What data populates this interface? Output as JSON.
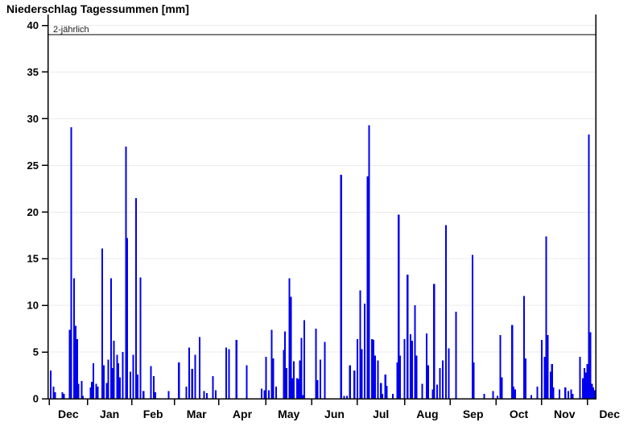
{
  "window": {
    "title": "Niederschlag Tagessummen [mm]"
  },
  "colors": {
    "bar": "#0000EE",
    "grid": "#ebebeb",
    "axis": "#000000",
    "threshold_line": "#000000",
    "background": "#FFFFFF",
    "text": "#000000"
  },
  "chart_data": {
    "type": "bar",
    "title": "Niederschlag Tagessummen [mm]",
    "xlabel": "",
    "ylabel": "",
    "unit": "mm",
    "ylim": [
      0,
      40
    ],
    "y_ticks": [
      0,
      5,
      10,
      15,
      20,
      25,
      30,
      35,
      40
    ],
    "grid": "horizontal light-gray lines every 5 mm",
    "legend_position": "none",
    "threshold": {
      "label": "2-jährlich",
      "value": 39.0
    },
    "month_ticks": [
      {
        "label": "Dec",
        "tick_day": 0,
        "center_day": 13
      },
      {
        "label": "Jan",
        "tick_day": 26,
        "center_day": 41
      },
      {
        "label": "Feb",
        "tick_day": 56,
        "center_day": 70.5
      },
      {
        "label": "Mar",
        "tick_day": 85,
        "center_day": 100
      },
      {
        "label": "Apr",
        "tick_day": 115,
        "center_day": 131
      },
      {
        "label": "May",
        "tick_day": 147,
        "center_day": 162.5
      },
      {
        "label": "Jun",
        "tick_day": 178,
        "center_day": 193.5
      },
      {
        "label": "Jul",
        "tick_day": 209,
        "center_day": 225
      },
      {
        "label": "Aug",
        "tick_day": 241,
        "center_day": 256.5
      },
      {
        "label": "Sep",
        "tick_day": 272,
        "center_day": 287.5
      },
      {
        "label": "Oct",
        "tick_day": 303,
        "center_day": 318.5
      },
      {
        "label": "Nov",
        "tick_day": 334,
        "center_day": 349.5
      },
      {
        "label": "Dec",
        "tick_day": 365,
        "center_day": 380
      }
    ],
    "total_days": 371,
    "bars": [
      [
        1,
        3.0
      ],
      [
        3,
        1.3
      ],
      [
        4,
        0.7
      ],
      [
        9,
        0.7
      ],
      [
        10,
        0.5
      ],
      [
        14,
        7.4
      ],
      [
        15,
        29.1
      ],
      [
        17,
        12.9
      ],
      [
        18,
        7.8
      ],
      [
        19,
        6.4
      ],
      [
        20,
        1.6
      ],
      [
        22,
        1.9
      ],
      [
        23,
        0.3
      ],
      [
        28,
        1.2
      ],
      [
        29,
        1.8
      ],
      [
        30,
        3.8
      ],
      [
        32,
        1.6
      ],
      [
        33,
        1.3
      ],
      [
        36,
        16.1
      ],
      [
        37,
        3.6
      ],
      [
        39,
        1.7
      ],
      [
        40,
        4.2
      ],
      [
        42,
        12.9
      ],
      [
        43,
        3.3
      ],
      [
        44,
        6.2
      ],
      [
        46,
        4.7
      ],
      [
        47,
        3.8
      ],
      [
        48,
        2.3
      ],
      [
        50,
        5.0
      ],
      [
        52,
        27.0
      ],
      [
        53,
        17.2
      ],
      [
        55,
        2.9
      ],
      [
        57,
        4.7
      ],
      [
        59,
        21.5
      ],
      [
        60,
        2.6
      ],
      [
        62,
        13.0
      ],
      [
        64,
        0.8
      ],
      [
        69,
        3.5
      ],
      [
        71,
        2.4
      ],
      [
        72,
        0.7
      ],
      [
        81,
        0.8
      ],
      [
        88,
        3.9
      ],
      [
        93,
        1.3
      ],
      [
        95,
        5.5
      ],
      [
        97,
        3.2
      ],
      [
        99,
        4.7
      ],
      [
        102,
        6.6
      ],
      [
        105,
        0.8
      ],
      [
        107,
        0.6
      ],
      [
        111,
        2.4
      ],
      [
        113,
        0.9
      ],
      [
        120,
        5.5
      ],
      [
        122,
        5.3
      ],
      [
        127,
        6.3
      ],
      [
        134,
        3.6
      ],
      [
        144,
        1.1
      ],
      [
        146,
        0.9
      ],
      [
        147,
        4.5
      ],
      [
        149,
        0.9
      ],
      [
        151,
        7.4
      ],
      [
        152,
        4.3
      ],
      [
        154,
        1.3
      ],
      [
        159,
        5.2
      ],
      [
        160,
        7.2
      ],
      [
        161,
        3.3
      ],
      [
        163,
        12.9
      ],
      [
        164,
        10.9
      ],
      [
        165,
        2.2
      ],
      [
        166,
        4.0
      ],
      [
        168,
        2.2
      ],
      [
        169,
        2.1
      ],
      [
        170,
        4.1
      ],
      [
        171,
        6.5
      ],
      [
        172,
        0.4
      ],
      [
        173,
        8.4
      ],
      [
        181,
        7.5
      ],
      [
        182,
        2.0
      ],
      [
        184,
        4.2
      ],
      [
        187,
        6.1
      ],
      [
        198,
        24.0
      ],
      [
        200,
        0.3
      ],
      [
        202,
        0.3
      ],
      [
        204,
        3.6
      ],
      [
        207,
        3.0
      ],
      [
        209,
        6.4
      ],
      [
        211,
        11.6
      ],
      [
        212,
        5.3
      ],
      [
        214,
        10.2
      ],
      [
        216,
        23.8
      ],
      [
        217,
        29.3
      ],
      [
        219,
        6.4
      ],
      [
        220,
        6.3
      ],
      [
        221,
        4.6
      ],
      [
        223,
        4.1
      ],
      [
        225,
        1.7
      ],
      [
        226,
        0.5
      ],
      [
        228,
        2.6
      ],
      [
        229,
        1.4
      ],
      [
        233,
        0.5
      ],
      [
        236,
        3.9
      ],
      [
        237,
        19.7
      ],
      [
        238,
        4.6
      ],
      [
        241,
        6.4
      ],
      [
        243,
        13.3
      ],
      [
        245,
        6.9
      ],
      [
        246,
        6.2
      ],
      [
        248,
        10.0
      ],
      [
        249,
        4.6
      ],
      [
        253,
        1.6
      ],
      [
        256,
        7.0
      ],
      [
        257,
        3.6
      ],
      [
        260,
        1.0
      ],
      [
        261,
        12.3
      ],
      [
        263,
        1.5
      ],
      [
        265,
        3.3
      ],
      [
        267,
        4.1
      ],
      [
        269,
        18.6
      ],
      [
        271,
        5.4
      ],
      [
        276,
        9.3
      ],
      [
        287,
        15.4
      ],
      [
        288,
        3.9
      ],
      [
        295,
        0.5
      ],
      [
        301,
        0.8
      ],
      [
        304,
        0.3
      ],
      [
        306,
        6.8
      ],
      [
        307,
        2.3
      ],
      [
        314,
        7.9
      ],
      [
        315,
        1.3
      ],
      [
        316,
        1.0
      ],
      [
        322,
        11.0
      ],
      [
        323,
        4.3
      ],
      [
        327,
        0.4
      ],
      [
        331,
        1.3
      ],
      [
        334,
        6.3
      ],
      [
        336,
        4.5
      ],
      [
        337,
        17.4
      ],
      [
        338,
        6.8
      ],
      [
        340,
        2.9
      ],
      [
        341,
        3.7
      ],
      [
        342,
        1.2
      ],
      [
        346,
        1.0
      ],
      [
        350,
        1.2
      ],
      [
        352,
        0.8
      ],
      [
        354,
        1.0
      ],
      [
        355,
        0.5
      ],
      [
        360,
        4.5
      ],
      [
        362,
        2.2
      ],
      [
        363,
        3.3
      ],
      [
        364,
        2.8
      ],
      [
        365,
        3.7
      ],
      [
        366,
        28.3
      ],
      [
        367,
        7.1
      ],
      [
        368,
        1.6
      ],
      [
        369,
        1.2
      ],
      [
        370,
        0.9
      ]
    ]
  }
}
